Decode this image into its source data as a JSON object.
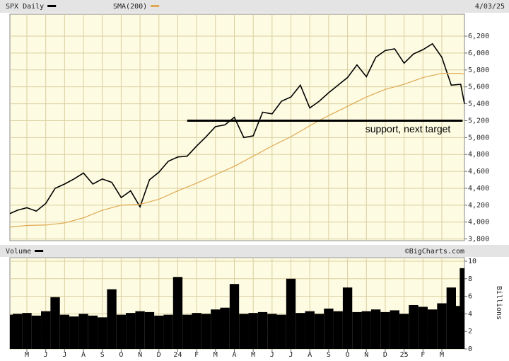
{
  "chart_data": [
    {
      "type": "line",
      "title": "SPX Daily",
      "date": "4/03/25",
      "xlim": [
        -0.9,
        23.2
      ],
      "ylim": [
        3780,
        6460
      ],
      "yticks": [
        {
          "value": 3800,
          "label": "3,800"
        },
        {
          "value": 4000,
          "label": "4,000"
        },
        {
          "value": 4200,
          "label": "4,200"
        },
        {
          "value": 4400,
          "label": "4,400"
        },
        {
          "value": 4600,
          "label": "4,600"
        },
        {
          "value": 4800,
          "label": "4,800"
        },
        {
          "value": 5000,
          "label": "5,000"
        },
        {
          "value": 5200,
          "label": "5,200"
        },
        {
          "value": 5400,
          "label": "5,400"
        },
        {
          "value": 5600,
          "label": "5,600"
        },
        {
          "value": 5800,
          "label": "5,800"
        },
        {
          "value": 6000,
          "label": "6,000"
        },
        {
          "value": 6200,
          "label": "6,200"
        }
      ],
      "grid": true,
      "series": [
        {
          "name": "SPX Daily",
          "color": "#000000",
          "x": [
            -0.9,
            -0.5,
            0,
            0.5,
            1,
            1.5,
            2,
            2.5,
            3,
            3.5,
            4,
            4.5,
            5,
            5.5,
            6,
            6.5,
            7,
            7.5,
            8,
            8.5,
            9,
            9.5,
            10,
            10.5,
            11,
            11.5,
            12,
            12.5,
            13,
            13.5,
            14,
            14.5,
            15,
            15.5,
            16,
            16.5,
            17,
            17.5,
            18,
            18.5,
            19,
            19.5,
            20,
            20.5,
            21,
            21.5,
            22,
            22.5,
            23,
            23.2
          ],
          "values": [
            4100,
            4140,
            4170,
            4130,
            4220,
            4400,
            4450,
            4510,
            4580,
            4450,
            4510,
            4470,
            4290,
            4370,
            4180,
            4500,
            4590,
            4720,
            4770,
            4780,
            4900,
            5010,
            5130,
            5150,
            5240,
            5000,
            5020,
            5300,
            5280,
            5430,
            5480,
            5620,
            5350,
            5430,
            5530,
            5620,
            5710,
            5860,
            5720,
            5950,
            6030,
            6050,
            5880,
            5990,
            6040,
            6110,
            5950,
            5620,
            5630,
            5400
          ]
        },
        {
          "name": "SMA(200)",
          "color": "#e0a850",
          "x": [
            -0.9,
            0,
            1,
            2,
            3,
            4,
            5,
            6,
            7,
            8,
            9,
            10,
            11,
            12,
            13,
            14,
            15,
            16,
            17,
            18,
            19,
            20,
            21,
            22,
            23,
            23.2
          ],
          "values": [
            3940,
            3960,
            3965,
            3990,
            4050,
            4140,
            4200,
            4210,
            4270,
            4370,
            4460,
            4560,
            4660,
            4780,
            4900,
            5010,
            5140,
            5260,
            5370,
            5480,
            5570,
            5630,
            5710,
            5760,
            5760,
            5750
          ]
        }
      ],
      "annotation": {
        "label": "support, next target",
        "value": 5200,
        "x": [
          8.5,
          23.1
        ]
      }
    },
    {
      "type": "bar",
      "title": "Volume",
      "source": "©BigCharts.com",
      "ylabel": "Billions",
      "xlim": [
        -0.9,
        23.2
      ],
      "ylim": [
        0,
        10.4
      ],
      "yticks": [
        0,
        2,
        4,
        6,
        8,
        10
      ],
      "grid": true,
      "xticks": [
        {
          "value": 0,
          "label": "M"
        },
        {
          "value": 1,
          "label": "J"
        },
        {
          "value": 2,
          "label": "J"
        },
        {
          "value": 3,
          "label": "A"
        },
        {
          "value": 4,
          "label": "S"
        },
        {
          "value": 5,
          "label": "O"
        },
        {
          "value": 6,
          "label": "N"
        },
        {
          "value": 7,
          "label": "D"
        },
        {
          "value": 8,
          "label": "24"
        },
        {
          "value": 9,
          "label": "F"
        },
        {
          "value": 10,
          "label": "M"
        },
        {
          "value": 11,
          "label": "A"
        },
        {
          "value": 12,
          "label": "M"
        },
        {
          "value": 13,
          "label": "J"
        },
        {
          "value": 14,
          "label": "J"
        },
        {
          "value": 15,
          "label": "A"
        },
        {
          "value": 16,
          "label": "S"
        },
        {
          "value": 17,
          "label": "O"
        },
        {
          "value": 18,
          "label": "N"
        },
        {
          "value": 19,
          "label": "D"
        },
        {
          "value": 20,
          "label": "25"
        },
        {
          "value": 21,
          "label": "F"
        },
        {
          "value": 22,
          "label": "M"
        }
      ],
      "series": [
        {
          "name": "Volume",
          "color": "#000000",
          "x": [
            -0.9,
            -0.5,
            0,
            0.5,
            1,
            1.5,
            2,
            2.5,
            3,
            3.5,
            4,
            4.5,
            5,
            5.5,
            6,
            6.5,
            7,
            7.5,
            8,
            8.5,
            9,
            9.5,
            10,
            10.5,
            11,
            11.5,
            12,
            12.5,
            13,
            13.5,
            14,
            14.5,
            15,
            15.5,
            16,
            16.5,
            17,
            17.5,
            18,
            18.5,
            19,
            19.5,
            20,
            20.5,
            21,
            21.5,
            22,
            22.5,
            23,
            23.2
          ],
          "values": [
            3.9,
            4.0,
            4.1,
            3.8,
            4.3,
            5.9,
            3.9,
            3.7,
            4.0,
            3.8,
            3.6,
            6.8,
            3.9,
            4.1,
            4.3,
            4.2,
            3.8,
            3.9,
            8.2,
            3.9,
            4.1,
            4.0,
            4.5,
            4.7,
            7.4,
            4.0,
            4.1,
            4.2,
            4.0,
            3.9,
            8.0,
            4.1,
            4.3,
            4.0,
            4.6,
            4.3,
            7.0,
            4.2,
            4.3,
            4.5,
            4.2,
            4.4,
            4.0,
            5.0,
            4.8,
            4.5,
            5.2,
            7.0,
            4.9,
            9.2
          ]
        }
      ]
    }
  ]
}
